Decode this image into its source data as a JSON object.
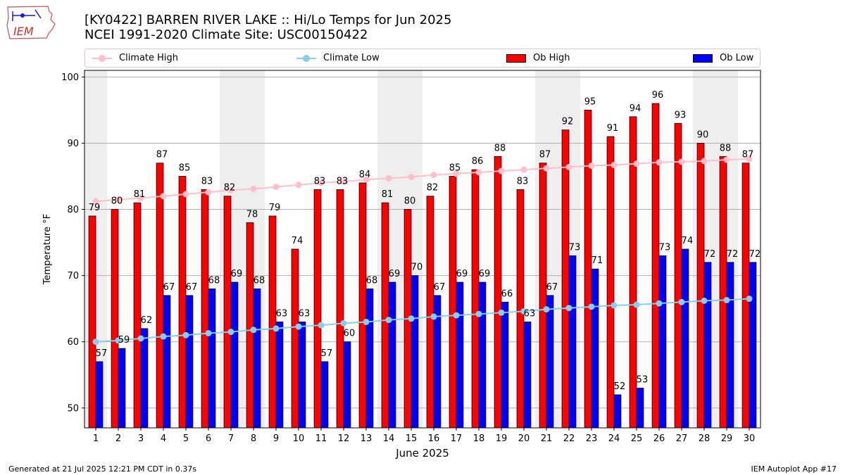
{
  "logo": {
    "text": "IEM"
  },
  "header": {
    "title_line1": "[KY0422] BARREN RIVER LAKE :: Hi/Lo Temps for Jun 2025",
    "title_line2": "NCEI 1991-2020 Climate Site: USC00150422"
  },
  "legend": {
    "climate_high": "Climate High",
    "climate_low": "Climate Low",
    "ob_high": "Ob High",
    "ob_low": "Ob Low"
  },
  "footer": {
    "left": "Generated at 21 Jul 2025 12:21 PM CDT in 0.37s",
    "right": "IEM Autoplot App #17"
  },
  "colors": {
    "ob_high": "#ff0000",
    "ob_low": "#0000ff",
    "climate_high": "#ffc0cb",
    "climate_low": "#87ceeb",
    "weekend_shade": "#eeeeee"
  },
  "chart_data": {
    "type": "bar",
    "xlabel": "June 2025",
    "ylabel": "Temperature °F",
    "ylim": [
      47,
      101
    ],
    "yticks": [
      50,
      60,
      70,
      80,
      90,
      100
    ],
    "grid": true,
    "legend_position": "top",
    "categories": [
      "1",
      "2",
      "3",
      "4",
      "5",
      "6",
      "7",
      "8",
      "9",
      "10",
      "11",
      "12",
      "13",
      "14",
      "15",
      "16",
      "17",
      "18",
      "19",
      "20",
      "21",
      "22",
      "23",
      "24",
      "25",
      "26",
      "27",
      "28",
      "29",
      "30"
    ],
    "shaded_days": [
      1,
      7,
      8,
      14,
      15,
      21,
      22,
      28,
      29
    ],
    "series": [
      {
        "name": "Ob High",
        "kind": "bar",
        "values": [
          79,
          80,
          81,
          87,
          85,
          83,
          82,
          78,
          79,
          74,
          83,
          83,
          84,
          81,
          80,
          82,
          85,
          86,
          88,
          83,
          87,
          92,
          95,
          91,
          94,
          96,
          93,
          90,
          88,
          87
        ]
      },
      {
        "name": "Ob Low",
        "kind": "bar",
        "values": [
          57,
          59,
          62,
          67,
          67,
          68,
          69,
          68,
          63,
          63,
          57,
          60,
          68,
          69,
          70,
          67,
          69,
          69,
          66,
          63,
          67,
          73,
          71,
          52,
          53,
          73,
          74,
          72,
          72,
          72
        ]
      },
      {
        "name": "Climate High",
        "kind": "line",
        "values": [
          81.2,
          81.5,
          81.7,
          82.0,
          82.3,
          82.6,
          82.9,
          83.1,
          83.4,
          83.7,
          84.0,
          84.2,
          84.5,
          84.7,
          84.9,
          85.2,
          85.4,
          85.6,
          85.8,
          86.0,
          86.2,
          86.4,
          86.6,
          86.7,
          86.9,
          87.1,
          87.2,
          87.3,
          87.5,
          87.6
        ]
      },
      {
        "name": "Climate Low",
        "kind": "line",
        "values": [
          60.0,
          60.2,
          60.5,
          60.8,
          61.0,
          61.3,
          61.5,
          61.8,
          62.0,
          62.3,
          62.5,
          62.8,
          63.0,
          63.3,
          63.5,
          63.8,
          64.0,
          64.2,
          64.4,
          64.6,
          64.9,
          65.1,
          65.3,
          65.5,
          65.6,
          65.8,
          66.0,
          66.2,
          66.3,
          66.5
        ]
      }
    ]
  }
}
